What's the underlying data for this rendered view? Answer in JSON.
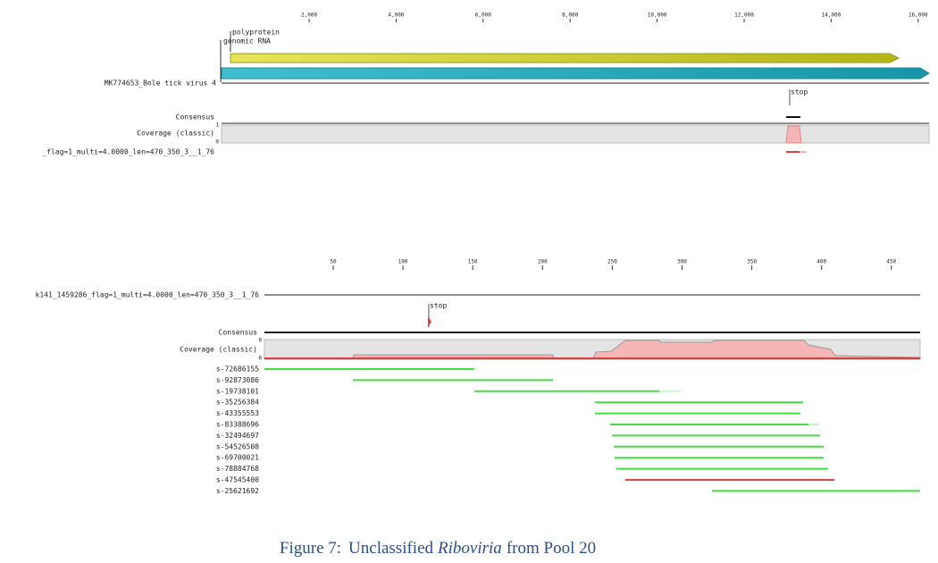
{
  "top_panel": {
    "ruler": [
      "2,000",
      "4,000",
      "6,000",
      "8,000",
      "10,000",
      "12,000",
      "14,000",
      "16,000"
    ],
    "annotations": [
      "polyprotein",
      "genomic RNA"
    ],
    "sequence_name": "MK774653_Bole tick virus 4",
    "stop_label": "stop",
    "consensus_label": "Consensus",
    "coverage_label": "Coverage (classic)",
    "coverage_max": "1",
    "coverage_min": "0",
    "read_name": "_flag=1_multi=4.0000_len=470_350_3__1_76"
  },
  "bottom_panel": {
    "ruler": [
      "50",
      "100",
      "150",
      "200",
      "250",
      "300",
      "350",
      "400",
      "450"
    ],
    "sequence_name": "k141_1459286_flag=1_multi=4.0000_len=470_350_3__1_76",
    "stop_label": "stop",
    "consensus_label": "Consensus",
    "coverage_label": "Coverage (classic)",
    "coverage_max": "9",
    "coverage_min": "0",
    "reads": [
      "s-72686155",
      "s-92873086",
      "s-19738101",
      "s-35256384",
      "s-43355553",
      "s-83388696",
      "s-32494697",
      "s-54526508",
      "s-69700021",
      "s-78884768",
      "s-47545400",
      "s-25621692"
    ]
  },
  "caption": {
    "label": "Figure 7:",
    "prefix": "Unclassified",
    "italic": "Riboviria",
    "suffix": "from Pool 20"
  }
}
